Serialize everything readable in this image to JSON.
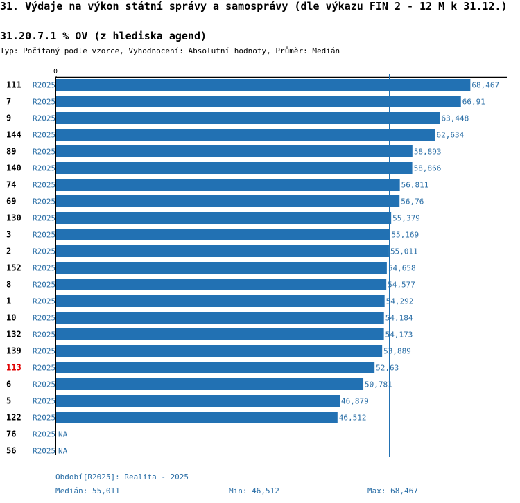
{
  "header": {
    "title": "31. Výdaje na výkon státní správy a samosprávy (dle výkazu FIN 2 - 12 M k 31.12.)",
    "subtitle": "31.20.7.1 % OV (z hlediska agend)",
    "meta": "Typ: Počítaný podle vzorce, Vyhodnocení: Absolutní hodnoty, Průměr: Medián"
  },
  "colors": {
    "bar": "#2271b3",
    "value_text": "#2a6ea6",
    "highlight_label": "#e00000",
    "median_line": "#2271b3",
    "axis": "#000000"
  },
  "chart_data": {
    "type": "bar",
    "orientation": "horizontal",
    "axis_zero_label": "0",
    "xlim": [
      0,
      69
    ],
    "median": 55.011,
    "highlight_id": "113",
    "series_label": "R2025",
    "rows": [
      {
        "id": "111",
        "period": "R2025",
        "value": 68.467,
        "label": "68,467"
      },
      {
        "id": "7",
        "period": "R2025",
        "value": 66.91,
        "label": "66,91"
      },
      {
        "id": "9",
        "period": "R2025",
        "value": 63.448,
        "label": "63,448"
      },
      {
        "id": "144",
        "period": "R2025",
        "value": 62.634,
        "label": "62,634"
      },
      {
        "id": "89",
        "period": "R2025",
        "value": 58.893,
        "label": "58,893"
      },
      {
        "id": "140",
        "period": "R2025",
        "value": 58.866,
        "label": "58,866"
      },
      {
        "id": "74",
        "period": "R2025",
        "value": 56.811,
        "label": "56,811"
      },
      {
        "id": "69",
        "period": "R2025",
        "value": 56.76,
        "label": "56,76"
      },
      {
        "id": "130",
        "period": "R2025",
        "value": 55.379,
        "label": "55,379"
      },
      {
        "id": "3",
        "period": "R2025",
        "value": 55.169,
        "label": "55,169"
      },
      {
        "id": "2",
        "period": "R2025",
        "value": 55.011,
        "label": "55,011"
      },
      {
        "id": "152",
        "period": "R2025",
        "value": 54.658,
        "label": "54,658"
      },
      {
        "id": "8",
        "period": "R2025",
        "value": 54.577,
        "label": "54,577"
      },
      {
        "id": "1",
        "period": "R2025",
        "value": 54.292,
        "label": "54,292"
      },
      {
        "id": "10",
        "period": "R2025",
        "value": 54.184,
        "label": "54,184"
      },
      {
        "id": "132",
        "period": "R2025",
        "value": 54.173,
        "label": "54,173"
      },
      {
        "id": "139",
        "period": "R2025",
        "value": 53.889,
        "label": "53,889"
      },
      {
        "id": "113",
        "period": "R2025",
        "value": 52.63,
        "label": "52,63"
      },
      {
        "id": "6",
        "period": "R2025",
        "value": 50.781,
        "label": "50,781"
      },
      {
        "id": "5",
        "period": "R2025",
        "value": 46.879,
        "label": "46,879"
      },
      {
        "id": "122",
        "period": "R2025",
        "value": 46.512,
        "label": "46,512"
      },
      {
        "id": "76",
        "period": "R2025",
        "value": null,
        "label": "NA"
      },
      {
        "id": "56",
        "period": "R2025",
        "value": null,
        "label": "NA"
      }
    ]
  },
  "footer": {
    "period_note": "Období[R2025]: Realita - 2025",
    "median_text": "Medián: 55,011",
    "min_text": "Min: 46,512",
    "max_text": "Max: 68,467"
  }
}
